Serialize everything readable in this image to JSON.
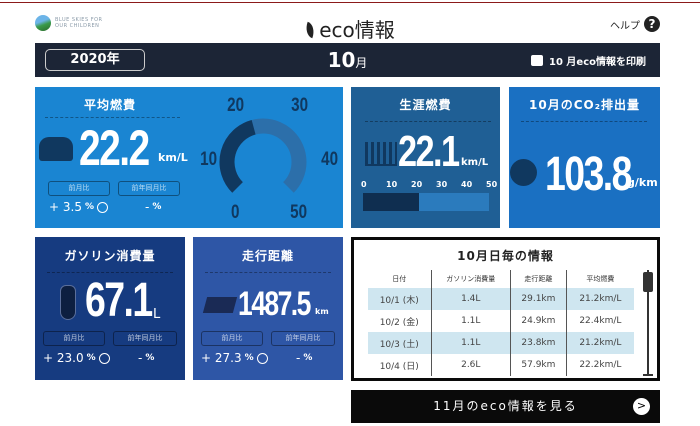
{
  "header": {
    "logo_text": "BLUE SKIES FOR OUR CHILDREN",
    "title": "eco情報",
    "help": "ヘルプ",
    "help_icon": "?"
  },
  "bar": {
    "year": "2020年",
    "month_num": "10",
    "month_suffix": "月",
    "print": "10 月eco情報を印刷"
  },
  "avg": {
    "title": "平均燃費",
    "value": "22.2",
    "unit": "km/L",
    "prev_month_label": "前月比",
    "prev_year_label": "前年同月比",
    "prev_month": "+ 3.5",
    "prev_year": "-",
    "pct": "%",
    "gauge": {
      "min": 0,
      "max": 50,
      "value": 22.2,
      "labels": [
        "0",
        "10",
        "20",
        "30",
        "40",
        "50"
      ]
    }
  },
  "lifetime": {
    "title": "生涯燃費",
    "value": "22.1",
    "unit": "km/L",
    "scale": [
      "0",
      "10",
      "20",
      "30",
      "40",
      "50"
    ],
    "fill_value": 22.1,
    "max": 50
  },
  "co2": {
    "title": "10月のCO₂排出量",
    "value": "103.8",
    "unit": "g/km"
  },
  "fuel": {
    "title": "ガソリン消費量",
    "value": "67.1",
    "unit": "L",
    "prev_month_label": "前月比",
    "prev_year_label": "前年同月比",
    "prev_month": "+ 23.0",
    "prev_year": "-",
    "pct": "%"
  },
  "distance": {
    "title": "走行距離",
    "value": "1487.5",
    "unit": "km",
    "prev_month_label": "前月比",
    "prev_year_label": "前年同月比",
    "prev_month": "+ 27.3",
    "prev_year": "-",
    "pct": "%"
  },
  "daily": {
    "title": "10月日毎の情報",
    "headers": [
      "日付",
      "ガソリン消費量",
      "走行距離",
      "平均燃費"
    ],
    "rows": [
      [
        "10/1 (木)",
        "1.4L",
        "29.1km",
        "21.2km/L"
      ],
      [
        "10/2 (金)",
        "1.1L",
        "24.9km",
        "22.4km/L"
      ],
      [
        "10/3 (土)",
        "1.1L",
        "23.8km",
        "21.2km/L"
      ],
      [
        "10/4 (日)",
        "2.6L",
        "57.9km",
        "22.2km/L"
      ]
    ]
  },
  "next": {
    "label": "11月のeco情報を見る"
  },
  "colors": {
    "avg": "#1a85d2",
    "lifetime": "#1f5f95",
    "co2": "#1a70c2",
    "fuel": "#163b80",
    "distance": "#2e56a6",
    "dark": "#1c2536"
  }
}
